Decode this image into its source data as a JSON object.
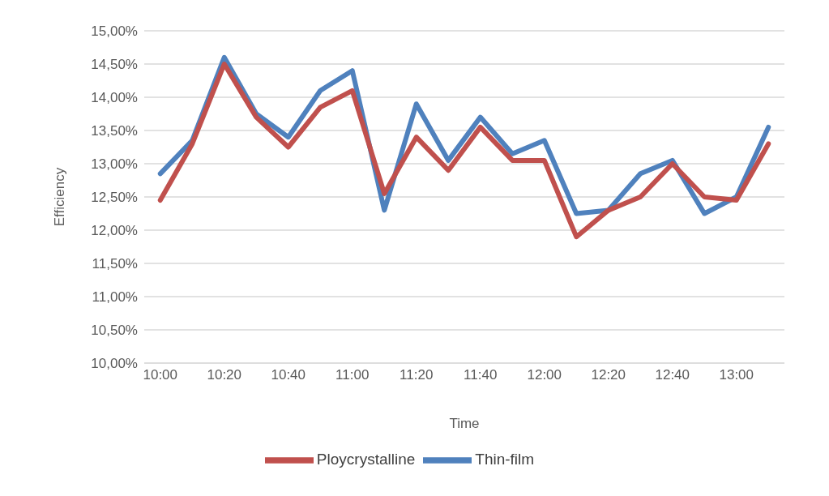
{
  "chart_data": {
    "type": "line",
    "xlabel": "Time",
    "ylabel": "Efficiency",
    "categories": [
      "10:00",
      null,
      "10:20",
      null,
      "10:40",
      null,
      "11:00",
      null,
      "11:20",
      null,
      "11:40",
      null,
      "12:00",
      null,
      "12:20",
      null,
      "12:40",
      null,
      "13:00",
      null
    ],
    "series": [
      {
        "name": "Thin-film",
        "color": "#4f81bd",
        "values": [
          12.85,
          13.35,
          14.6,
          13.75,
          13.4,
          14.1,
          14.4,
          12.3,
          13.9,
          13.05,
          13.7,
          13.15,
          13.35,
          12.25,
          12.3,
          12.85,
          13.05,
          12.25,
          12.5,
          13.55
        ]
      },
      {
        "name": "Ploycrystalline",
        "color": "#c0504d",
        "values": [
          12.45,
          13.3,
          14.5,
          13.7,
          13.25,
          13.85,
          14.1,
          12.55,
          13.4,
          12.9,
          13.55,
          13.05,
          13.05,
          11.9,
          12.3,
          12.5,
          13.0,
          12.5,
          12.45,
          13.3
        ]
      }
    ],
    "ylim": [
      10,
      15
    ],
    "yticks": [
      {
        "value": 10,
        "label": "10,00%"
      },
      {
        "value": 10.5,
        "label": "10,50%"
      },
      {
        "value": 11,
        "label": "11,00%"
      },
      {
        "value": 11.5,
        "label": "11,50%"
      },
      {
        "value": 12,
        "label": "12,00%"
      },
      {
        "value": 12.5,
        "label": "12,50%"
      },
      {
        "value": 13,
        "label": "13,00%"
      },
      {
        "value": 13.5,
        "label": "13,50%"
      },
      {
        "value": 14,
        "label": "14,00%"
      },
      {
        "value": 14.5,
        "label": "14,50%"
      },
      {
        "value": 15,
        "label": "15,00%"
      }
    ],
    "grid": "y",
    "legend": "bottom",
    "marker": "none",
    "line_style": "solid"
  }
}
